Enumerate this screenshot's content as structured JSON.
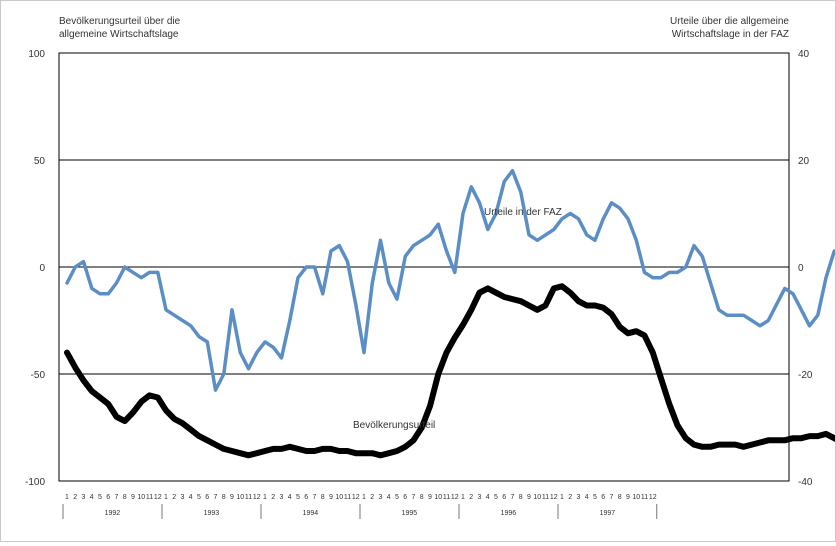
{
  "chart_data": {
    "type": "line",
    "title_left": "Bevölkerungsurteil über die allgemeine Wirtschaftslage",
    "title_left_lines": [
      "Bevölkerungsurteil über die",
      "allgemeine Wirtschaftslage"
    ],
    "title_right": "Urteile über die allgemeine Wirtschaftslage in der FAZ",
    "title_right_lines": [
      "Urteile über die allgemeine",
      "Wirtschaftslage in der FAZ"
    ],
    "y_left": {
      "min": -100,
      "max": 100,
      "ticks": [
        "100",
        "50",
        "0",
        "-50",
        "-100"
      ]
    },
    "y_right": {
      "min": -40,
      "max": 40,
      "ticks": [
        "40",
        "20",
        "0",
        "-20",
        "-40"
      ]
    },
    "gridlines_left": [
      100,
      50,
      0,
      -50,
      -100
    ],
    "months": [
      "1",
      "2",
      "3",
      "4",
      "5",
      "6",
      "7",
      "8",
      "9",
      "10",
      "11",
      "12"
    ],
    "years": [
      "1992",
      "1993",
      "1994",
      "1995",
      "1996",
      "1997"
    ],
    "colors": {
      "faz": "#5b8ec5",
      "bevoelkerung": "#000000",
      "grid": "#000000"
    },
    "series": [
      {
        "name": "Urteile in der FAZ",
        "axis": "right",
        "values": [
          -3,
          0,
          1,
          -4,
          -5,
          -5,
          -3,
          0,
          -1,
          -2,
          -1,
          -1,
          -8,
          -9,
          -10,
          -11,
          -13,
          -14,
          -23,
          -20,
          -8,
          -16,
          -19,
          -16,
          -14,
          -15,
          -17,
          -10,
          -2,
          0,
          0,
          -5,
          3,
          4,
          1,
          -7,
          -16,
          -3,
          5,
          -3,
          -6,
          2,
          4,
          5,
          6,
          8,
          3,
          -1,
          10,
          15,
          12,
          7,
          10,
          16,
          18,
          14,
          6,
          5,
          6,
          7,
          9,
          10,
          9,
          6,
          5,
          9,
          12,
          11,
          9,
          5,
          -1,
          -2,
          -2,
          -1,
          -1,
          0,
          4,
          2,
          -3,
          -8,
          -9,
          -9,
          -9,
          -10,
          -11,
          -10,
          -7,
          -4,
          -5,
          -8,
          -11,
          -9,
          -2,
          3,
          2,
          2,
          1,
          4,
          7,
          6,
          2,
          -4,
          -2,
          1,
          -6,
          -10,
          -2,
          3,
          4,
          4,
          3,
          2,
          1,
          1,
          1,
          1,
          2,
          2,
          1,
          -1,
          1,
          3,
          12,
          16,
          15,
          8,
          3,
          -1
        ]
      },
      {
        "name": "Bevölkerungsurteil",
        "axis": "left",
        "values": [
          -40,
          -47,
          -53,
          -58,
          -61,
          -64,
          -70,
          -72,
          -68,
          -63,
          -60,
          -61,
          -67,
          -71,
          -73,
          -76,
          -79,
          -81,
          -83,
          -85,
          -86,
          -87,
          -88,
          -87,
          -86,
          -85,
          -85,
          -84,
          -85,
          -86,
          -86,
          -85,
          -85,
          -86,
          -86,
          -87,
          -87,
          -87,
          -88,
          -87,
          -86,
          -84,
          -81,
          -75,
          -65,
          -50,
          -40,
          -33,
          -27,
          -20,
          -12,
          -10,
          -12,
          -14,
          -15,
          -16,
          -18,
          -20,
          -18,
          -10,
          -9,
          -12,
          -16,
          -18,
          -18,
          -19,
          -22,
          -28,
          -31,
          -30,
          -32,
          -40,
          -52,
          -64,
          -74,
          -80,
          -83,
          -84,
          -84,
          -83,
          -83,
          -83,
          -84,
          -83,
          -82,
          -81,
          -81,
          -81,
          -80,
          -80,
          -79,
          -79,
          -78,
          -80,
          -82,
          -85,
          -88,
          -89,
          -89,
          -88,
          -86,
          -84,
          -84,
          -84,
          -84,
          -84,
          -84,
          -84,
          -82,
          -80,
          -76,
          -73,
          -72,
          -71,
          -71,
          -71,
          -73
        ]
      }
    ],
    "annotations": [
      {
        "text": "Urteile in der FAZ",
        "series": "Urteile in der FAZ"
      },
      {
        "text": "Bevölkerungsurteil",
        "series": "Bevölkerungsurteil"
      }
    ]
  }
}
